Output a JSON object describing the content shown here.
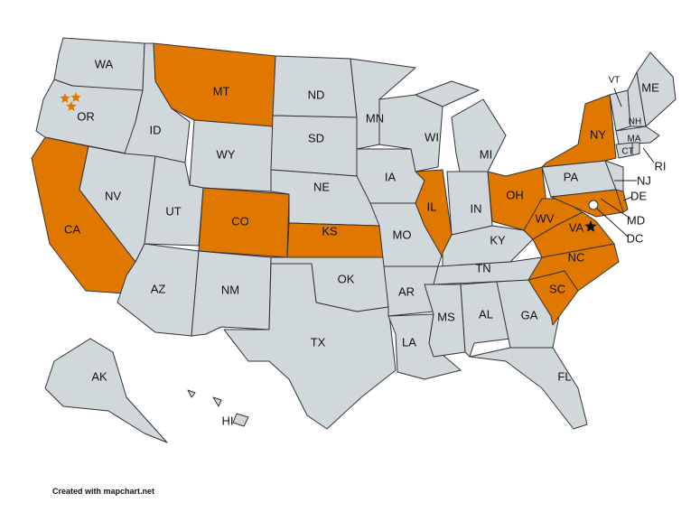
{
  "colors": {
    "default": "#d1d8dc",
    "highlight": "#e07800",
    "star_orange": "#e07800",
    "star_black": "#111111",
    "dc": "#ffffff"
  },
  "highlighted_states": [
    "MT",
    "CA",
    "CO",
    "KS",
    "IL",
    "OH",
    "NY",
    "WV",
    "VA",
    "NC",
    "SC",
    "MD",
    "DE"
  ],
  "states": {
    "WA": "WA",
    "OR": "OR",
    "CA": "CA",
    "ID": "ID",
    "NV": "NV",
    "MT": "MT",
    "WY": "WY",
    "UT": "UT",
    "CO": "CO",
    "AZ": "AZ",
    "NM": "NM",
    "ND": "ND",
    "SD": "SD",
    "NE": "NE",
    "KS": "KS",
    "OK": "OK",
    "TX": "TX",
    "MN": "MN",
    "IA": "IA",
    "MO": "MO",
    "AR": "AR",
    "LA": "LA",
    "WI": "WI",
    "IL": "IL",
    "MI": "MI",
    "IN": "IN",
    "OH": "OH",
    "KY": "KY",
    "TN": "TN",
    "MS": "MS",
    "AL": "AL",
    "GA": "GA",
    "FL": "FL",
    "SC": "SC",
    "NC": "NC",
    "VA": "VA",
    "WV": "WV",
    "PA": "PA",
    "NY": "NY",
    "NJ": "NJ",
    "MD": "MD",
    "DE": "DE",
    "DC": "DC",
    "VT": "VT",
    "NH": "NH",
    "ME": "ME",
    "MA": "MA",
    "CT": "CT",
    "RI": "RI",
    "AK": "AK",
    "HI": "HI"
  },
  "markers": [
    {
      "type": "star",
      "state": "OR",
      "count": 3,
      "color": "orange"
    },
    {
      "type": "star",
      "state": "VA",
      "count": 1,
      "color": "black"
    }
  ],
  "credit": "Created with mapchart.net"
}
